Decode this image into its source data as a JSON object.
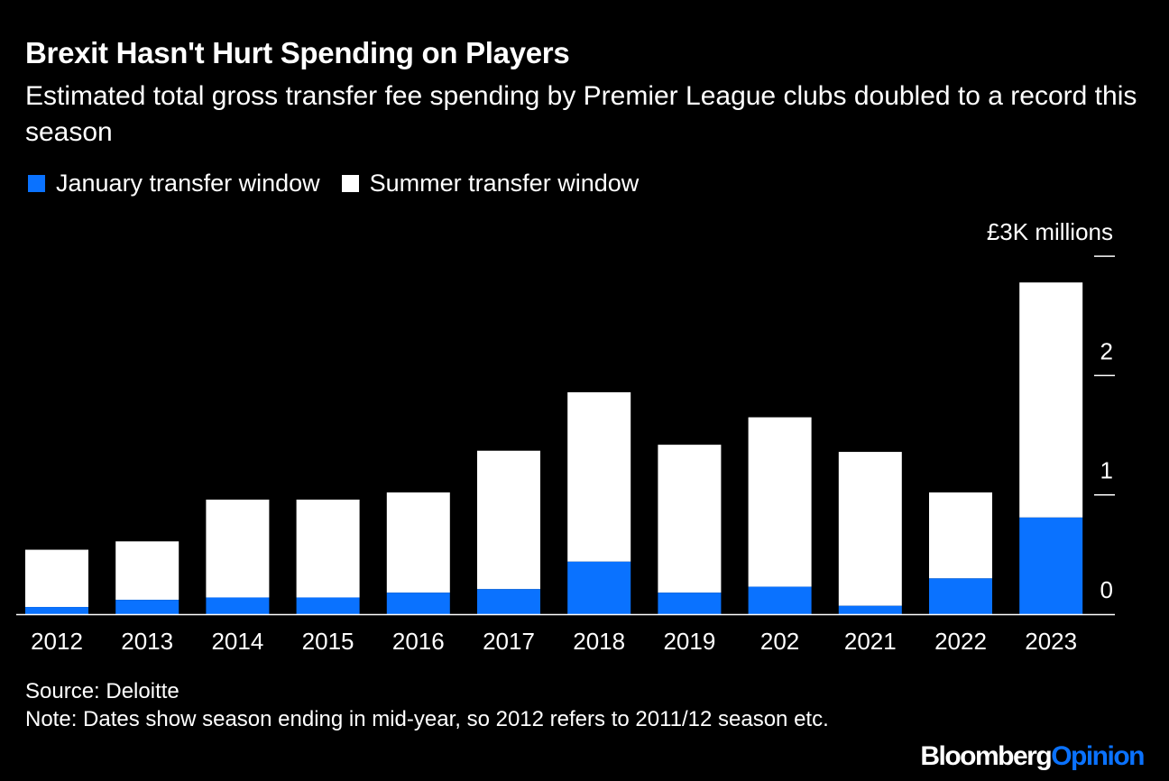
{
  "header": {
    "title": "Brexit Hasn't Hurt Spending on Players",
    "subtitle": "Estimated total gross transfer fee spending by Premier League clubs doubled to a record this season"
  },
  "legend": {
    "january": "January transfer window",
    "summer": "Summer transfer window"
  },
  "colors": {
    "january": "#0a72ff",
    "summer": "#ffffff",
    "background": "#000000"
  },
  "chart_data": {
    "type": "bar",
    "stacked": true,
    "title": "Brexit Hasn't Hurt Spending on Players",
    "unit_label": "£3K millions",
    "categories": [
      "2012",
      "2013",
      "2014",
      "2015",
      "2016",
      "2017",
      "2018",
      "2019",
      "202",
      "2021",
      "2022",
      "2023"
    ],
    "series": [
      {
        "name": "January transfer window",
        "values": [
          0.06,
          0.12,
          0.14,
          0.14,
          0.18,
          0.21,
          0.44,
          0.18,
          0.23,
          0.07,
          0.3,
          0.81
        ]
      },
      {
        "name": "Summer transfer window",
        "values": [
          0.48,
          0.49,
          0.82,
          0.82,
          0.84,
          1.16,
          1.42,
          1.24,
          1.42,
          1.29,
          0.72,
          1.97
        ]
      }
    ],
    "y_ticks": [
      "0",
      "1",
      "2",
      "£3K millions"
    ],
    "ylim": [
      0,
      3
    ],
    "grid": false,
    "legend_position": "top-left"
  },
  "footer": {
    "source": "Source: Deloitte",
    "note": "Note: Dates show season ending in mid-year, so 2012 refers to 2011/12 season etc."
  },
  "logo": {
    "bloomberg": "Bloomberg",
    "opinion": "Opinion"
  }
}
